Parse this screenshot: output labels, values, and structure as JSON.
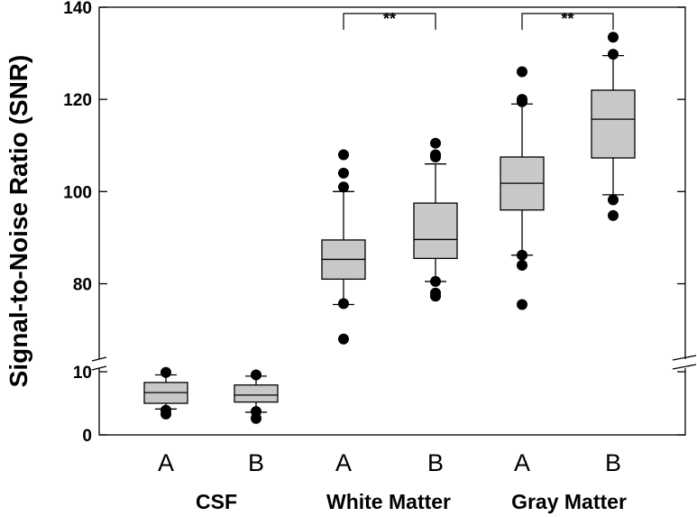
{
  "chart_data": {
    "type": "boxplot",
    "ylabel": "Signal-to-Noise Ratio (SNR)",
    "xlabel": "",
    "y_axis": {
      "segments": [
        {
          "range": [
            0,
            10
          ],
          "ticks": [
            0,
            10
          ]
        },
        {
          "range": [
            66,
            140
          ],
          "ticks": [
            80,
            100,
            120,
            140
          ]
        }
      ],
      "break_between": [
        10,
        66
      ]
    },
    "groups": [
      {
        "label": "CSF",
        "categories": [
          "A",
          "B"
        ]
      },
      {
        "label": "White Matter",
        "categories": [
          "A",
          "B"
        ]
      },
      {
        "label": "Gray Matter",
        "categories": [
          "A",
          "B"
        ]
      }
    ],
    "boxes": [
      {
        "group": "CSF",
        "category": "A",
        "whisker_low": 4.1,
        "q1": 5.0,
        "median": 6.7,
        "q3": 8.3,
        "whisker_high": 9.5,
        "outliers": [
          3.3,
          3.9,
          9.9
        ]
      },
      {
        "group": "CSF",
        "category": "B",
        "whisker_low": 3.6,
        "q1": 5.2,
        "median": 6.3,
        "q3": 7.9,
        "whisker_high": 9.3,
        "outliers": [
          2.6,
          3.7,
          9.5
        ]
      },
      {
        "group": "White Matter",
        "category": "A",
        "whisker_low": 75.5,
        "q1": 81.0,
        "median": 85.3,
        "q3": 89.5,
        "whisker_high": 100.0,
        "outliers": [
          68.0,
          75.7,
          101.0,
          104.0,
          108.0
        ]
      },
      {
        "group": "White Matter",
        "category": "B",
        "whisker_low": 80.5,
        "q1": 85.5,
        "median": 89.6,
        "q3": 97.5,
        "whisker_high": 106.0,
        "outliers": [
          77.3,
          78.0,
          80.5,
          107.5,
          108.0,
          110.5
        ]
      },
      {
        "group": "Gray Matter",
        "category": "A",
        "whisker_low": 86.2,
        "q1": 96.0,
        "median": 101.8,
        "q3": 107.5,
        "whisker_high": 119.0,
        "outliers": [
          75.5,
          84.0,
          86.2,
          119.5,
          120.0,
          126.0
        ]
      },
      {
        "group": "Gray Matter",
        "category": "B",
        "whisker_low": 99.3,
        "q1": 107.3,
        "median": 115.7,
        "q3": 122.0,
        "whisker_high": 129.5,
        "outliers": [
          94.8,
          98.2,
          129.8,
          133.5
        ]
      }
    ],
    "significance": [
      {
        "group": "White Matter",
        "between": [
          "A",
          "B"
        ],
        "label": "**"
      },
      {
        "group": "Gray Matter",
        "between": [
          "A",
          "B"
        ],
        "label": "**"
      }
    ],
    "colors": {
      "box_fill": "#c8c8c8",
      "stroke": "#000000",
      "outlier": "#000000"
    }
  }
}
